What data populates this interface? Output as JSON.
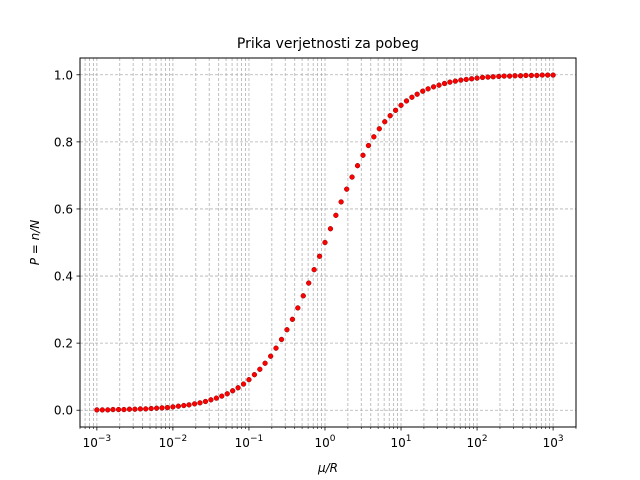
{
  "chart_data": {
    "type": "scatter",
    "title": "Prika verjetnosti za pobeg",
    "xlabel": "μ/R",
    "ylabel": "P = n/N",
    "xscale": "log",
    "xlim": [
      0.0006,
      2000
    ],
    "ylim": [
      -0.05,
      1.05
    ],
    "grid": true,
    "grid_style": "dashed",
    "marker_color": "#ff0000",
    "marker_edge_color": "#8b0000",
    "x_ticks": [
      {
        "value": 0.001,
        "mantissa": "10",
        "exponent": "−3"
      },
      {
        "value": 0.01,
        "mantissa": "10",
        "exponent": "−2"
      },
      {
        "value": 0.1,
        "mantissa": "10",
        "exponent": "−1"
      },
      {
        "value": 1,
        "mantissa": "10",
        "exponent": "0"
      },
      {
        "value": 10,
        "mantissa": "10",
        "exponent": "1"
      },
      {
        "value": 100,
        "mantissa": "10",
        "exponent": "2"
      },
      {
        "value": 1000,
        "mantissa": "10",
        "exponent": "3"
      }
    ],
    "y_ticks": [
      {
        "value": 0.0,
        "label": "0.0"
      },
      {
        "value": 0.2,
        "label": "0.2"
      },
      {
        "value": 0.4,
        "label": "0.4"
      },
      {
        "value": 0.6,
        "label": "0.6"
      },
      {
        "value": 0.8,
        "label": "0.8"
      },
      {
        "value": 1.0,
        "label": "1.0"
      }
    ],
    "series": [
      {
        "x": [
          0.001,
          0.00118,
          0.00139,
          0.00163,
          0.00193,
          0.00227,
          0.00268,
          0.00316,
          0.00373,
          0.00439,
          0.00518,
          0.00611,
          0.0072,
          0.00848,
          0.01,
          0.0118,
          0.0139,
          0.0163,
          0.0193,
          0.0227,
          0.0268,
          0.0316,
          0.0373,
          0.0439,
          0.0518,
          0.0611,
          0.072,
          0.0848,
          0.1,
          0.118,
          0.139,
          0.163,
          0.193,
          0.227,
          0.268,
          0.316,
          0.373,
          0.439,
          0.518,
          0.611,
          0.72,
          0.848,
          1.0,
          1.18,
          1.39,
          1.63,
          1.93,
          2.27,
          2.68,
          3.16,
          3.73,
          4.39,
          5.18,
          6.11,
          7.2,
          8.48,
          10.0,
          11.8,
          13.9,
          16.3,
          19.3,
          22.7,
          26.8,
          31.6,
          37.3,
          43.9,
          51.8,
          61.1,
          72.0,
          84.8,
          100,
          118,
          139,
          163,
          193,
          227,
          268,
          316,
          373,
          439,
          518,
          611,
          720,
          848,
          1000
        ],
        "y": [
          0.001,
          0.001,
          0.001,
          0.002,
          0.002,
          0.002,
          0.003,
          0.003,
          0.004,
          0.004,
          0.005,
          0.006,
          0.007,
          0.008,
          0.01,
          0.012,
          0.014,
          0.016,
          0.019,
          0.022,
          0.026,
          0.031,
          0.036,
          0.042,
          0.049,
          0.058,
          0.067,
          0.078,
          0.091,
          0.106,
          0.122,
          0.14,
          0.161,
          0.185,
          0.211,
          0.24,
          0.271,
          0.305,
          0.341,
          0.379,
          0.419,
          0.459,
          0.5,
          0.541,
          0.581,
          0.621,
          0.659,
          0.695,
          0.729,
          0.76,
          0.789,
          0.815,
          0.839,
          0.86,
          0.878,
          0.894,
          0.909,
          0.922,
          0.933,
          0.942,
          0.951,
          0.958,
          0.964,
          0.969,
          0.974,
          0.978,
          0.981,
          0.984,
          0.986,
          0.988,
          0.99,
          0.992,
          0.993,
          0.994,
          0.995,
          0.996,
          0.996,
          0.997,
          0.997,
          0.998,
          0.998,
          0.998,
          0.999,
          0.999,
          0.999
        ]
      }
    ]
  }
}
